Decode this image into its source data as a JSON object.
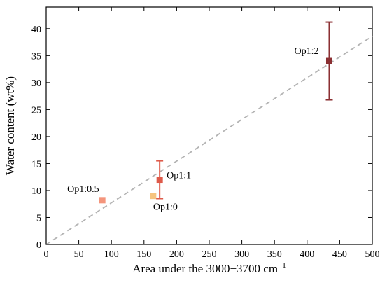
{
  "chart_data": {
    "type": "scatter",
    "xlabel": "Area under the 3000−3700 cm",
    "xlabel_superscript": "−1",
    "ylabel": "Water content (wt%)",
    "xlim": [
      0,
      500
    ],
    "ylim": [
      0,
      44
    ],
    "x_ticks": [
      0,
      50,
      100,
      150,
      200,
      250,
      300,
      350,
      400,
      450,
      500
    ],
    "y_ticks": [
      0,
      5,
      10,
      15,
      20,
      25,
      30,
      35,
      40
    ],
    "grid": false,
    "points": [
      {
        "label": "Op1:0.5",
        "x": 86,
        "y": 8.2,
        "err": null,
        "color": "#f4957c"
      },
      {
        "label": "Op1:0",
        "x": 164,
        "y": 9.0,
        "err": null,
        "color": "#f6c47f"
      },
      {
        "label": "Op1:1",
        "x": 174,
        "y": 12.0,
        "err": 3.5,
        "color": "#de5a4a"
      },
      {
        "label": "Op1:2",
        "x": 434,
        "y": 34.0,
        "err": 7.2,
        "color": "#8b3033"
      }
    ],
    "trendline": {
      "style": "dashed",
      "color": "#b3b3b3",
      "slope": 0.0772,
      "intercept": 0.0
    }
  }
}
